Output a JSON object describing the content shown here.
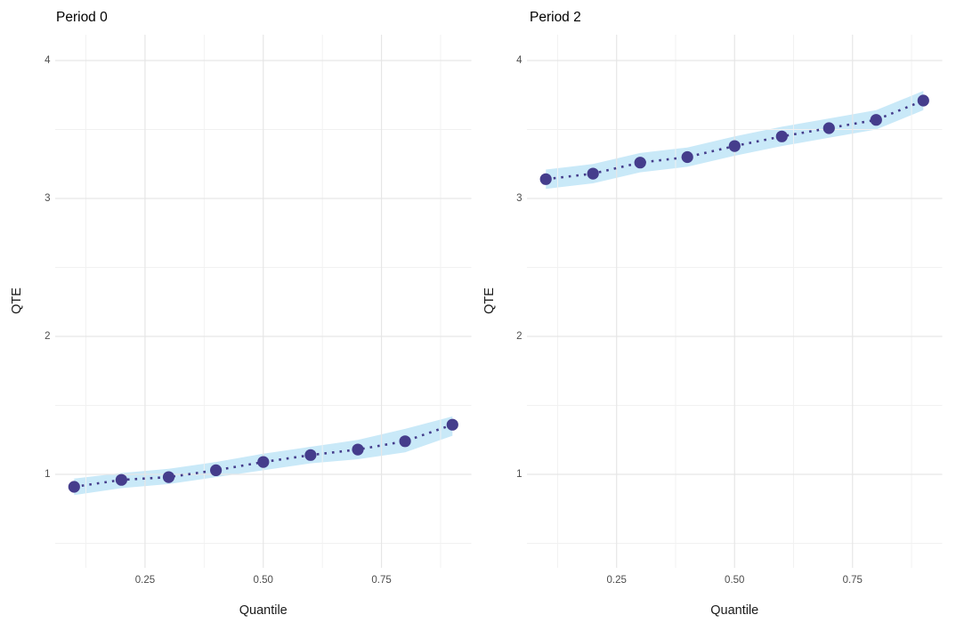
{
  "figure": {
    "background": "#FFFFFF"
  },
  "style": {
    "point_color": "#453D8C",
    "line_color": "#453D8C",
    "band_color": "#C9E9F8",
    "grid_major_color": "#E6E6E6",
    "grid_minor_color": "#F1F1F1",
    "tick_label_color": "#4D4D4D",
    "axis_title_color": "#1A1A1A",
    "title_color": "#000000",
    "panel_background": "#FFFFFF"
  },
  "chart_data": [
    {
      "type": "line",
      "title": "Period 0",
      "xlabel": "Quantile",
      "ylabel": "QTE",
      "legend": "none",
      "grid": true,
      "line_style": "dotted",
      "marker": "circle",
      "x": [
        0.1,
        0.2,
        0.3,
        0.4,
        0.5,
        0.6,
        0.7,
        0.8,
        0.9
      ],
      "series": [
        {
          "name": "QTE",
          "values": [
            0.91,
            0.96,
            0.98,
            1.03,
            1.09,
            1.14,
            1.18,
            1.24,
            1.36
          ]
        }
      ],
      "ci_lower": [
        0.85,
        0.9,
        0.93,
        0.98,
        1.03,
        1.08,
        1.11,
        1.16,
        1.28
      ],
      "ci_upper": [
        0.97,
        1.01,
        1.04,
        1.09,
        1.15,
        1.2,
        1.25,
        1.33,
        1.42
      ],
      "xlim": [
        0.06,
        0.94
      ],
      "ylim": [
        0.3226,
        4.1871
      ],
      "x_tick_values": [
        0.25,
        0.5,
        0.75
      ],
      "x_tick_labels": [
        "0.25",
        "0.50",
        "0.75"
      ],
      "x_minor_breaks": [
        0.125,
        0.375,
        0.625,
        0.875
      ],
      "y_tick_values": [
        1,
        2,
        3,
        4
      ],
      "y_tick_labels": [
        "1",
        "2",
        "3",
        "4"
      ],
      "y_minor_breaks": [
        0.5,
        1.5,
        2.5,
        3.5
      ]
    },
    {
      "type": "line",
      "title": "Period 2",
      "xlabel": "Quantile",
      "ylabel": "QTE",
      "legend": "none",
      "grid": true,
      "line_style": "dotted",
      "marker": "circle",
      "x": [
        0.1,
        0.2,
        0.3,
        0.4,
        0.5,
        0.6,
        0.7,
        0.8,
        0.9
      ],
      "series": [
        {
          "name": "QTE",
          "values": [
            3.14,
            3.18,
            3.26,
            3.3,
            3.38,
            3.45,
            3.51,
            3.57,
            3.71
          ]
        }
      ],
      "ci_lower": [
        3.07,
        3.11,
        3.19,
        3.23,
        3.31,
        3.38,
        3.44,
        3.5,
        3.64
      ],
      "ci_upper": [
        3.21,
        3.25,
        3.33,
        3.37,
        3.45,
        3.52,
        3.58,
        3.64,
        3.78
      ],
      "xlim": [
        0.06,
        0.94
      ],
      "ylim": [
        0.3226,
        4.1871
      ],
      "x_tick_values": [
        0.25,
        0.5,
        0.75
      ],
      "x_tick_labels": [
        "0.25",
        "0.50",
        "0.75"
      ],
      "x_minor_breaks": [
        0.125,
        0.375,
        0.625,
        0.875
      ],
      "y_tick_values": [
        1,
        2,
        3,
        4
      ],
      "y_tick_labels": [
        "1",
        "2",
        "3",
        "4"
      ],
      "y_minor_breaks": [
        0.5,
        1.5,
        2.5,
        3.5
      ]
    }
  ]
}
